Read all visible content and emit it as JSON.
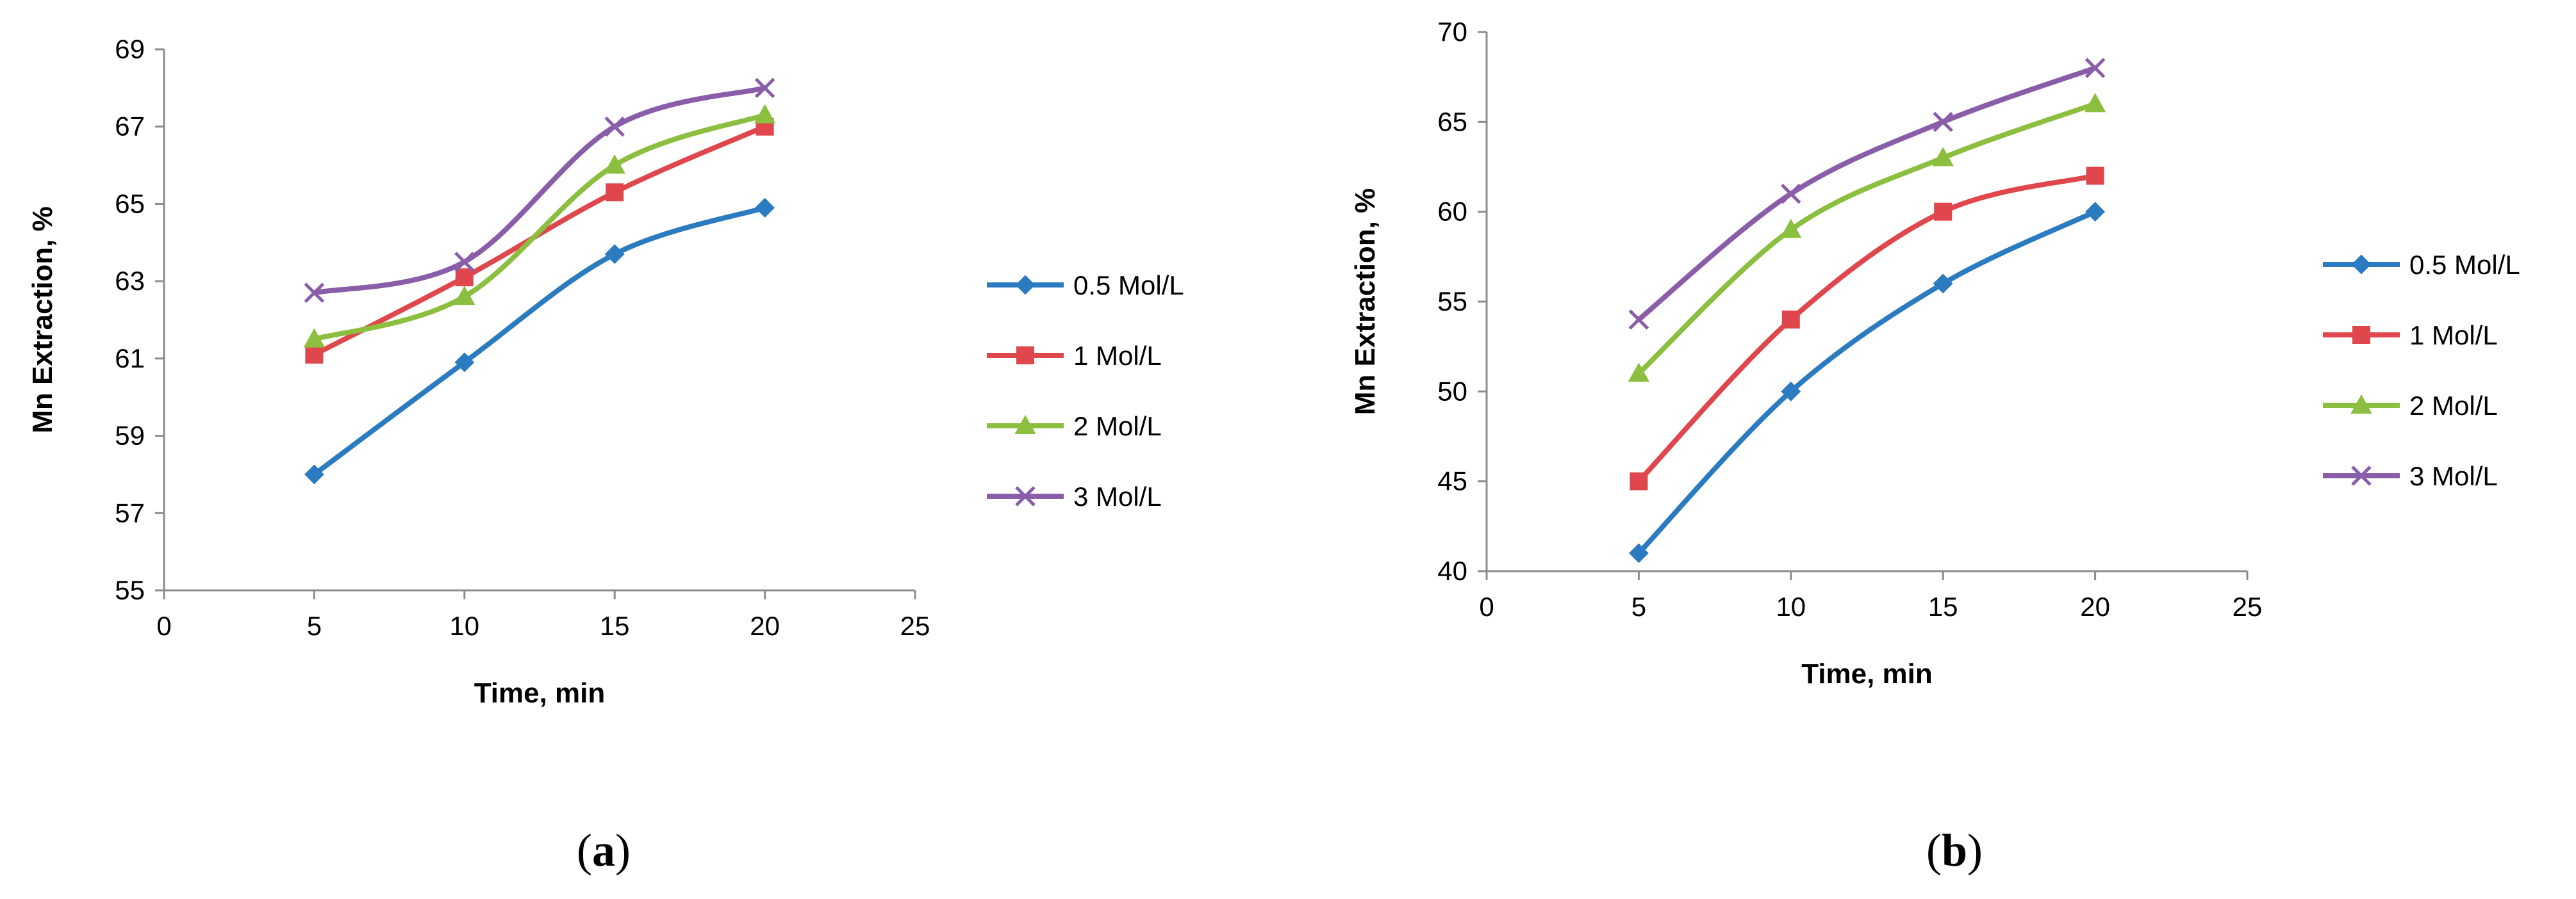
{
  "colors": {
    "series": [
      "#2a7bbf",
      "#e0474c",
      "#8cbf3f",
      "#8a5da8"
    ],
    "axis": "#8c8c8c"
  },
  "chart_data": [
    {
      "type": "line",
      "panel_label": "a",
      "xlabel": "Time, min",
      "ylabel": "Mn Extraction, %",
      "xlim": [
        0,
        25
      ],
      "ylim": [
        55,
        69
      ],
      "xticks": [
        0,
        5,
        10,
        15,
        20,
        25
      ],
      "yticks": [
        55,
        57,
        59,
        61,
        63,
        65,
        67,
        69
      ],
      "x": [
        5,
        10,
        15,
        20
      ],
      "series": [
        {
          "name": "0.5 Mol/L",
          "marker": "diamond",
          "values": [
            58.0,
            60.9,
            63.7,
            64.9
          ]
        },
        {
          "name": "1 Mol/L",
          "marker": "square",
          "values": [
            61.1,
            63.1,
            65.3,
            67.0
          ]
        },
        {
          "name": "2 Mol/L",
          "marker": "triangle",
          "values": [
            61.5,
            62.6,
            66.0,
            67.3
          ]
        },
        {
          "name": "3 Mol/L",
          "marker": "x",
          "values": [
            62.7,
            63.5,
            67.0,
            68.0
          ]
        }
      ],
      "grid": false,
      "legend_position": "right"
    },
    {
      "type": "line",
      "panel_label": "b",
      "xlabel": "Time, min",
      "ylabel": "Mn Extraction, %",
      "xlim": [
        0,
        25
      ],
      "ylim": [
        40,
        70
      ],
      "xticks": [
        0,
        5,
        10,
        15,
        20,
        25
      ],
      "yticks": [
        40,
        45,
        50,
        55,
        60,
        65,
        70
      ],
      "x": [
        5,
        10,
        15,
        20
      ],
      "series": [
        {
          "name": "0.5 Mol/L",
          "marker": "diamond",
          "values": [
            41,
            50,
            56,
            60
          ]
        },
        {
          "name": "1 Mol/L",
          "marker": "square",
          "values": [
            45,
            54,
            60,
            62
          ]
        },
        {
          "name": "2 Mol/L",
          "marker": "triangle",
          "values": [
            51,
            59,
            63,
            66
          ]
        },
        {
          "name": "3 Mol/L",
          "marker": "x",
          "values": [
            54,
            61,
            65,
            68
          ]
        }
      ],
      "grid": false,
      "legend_position": "right"
    }
  ]
}
